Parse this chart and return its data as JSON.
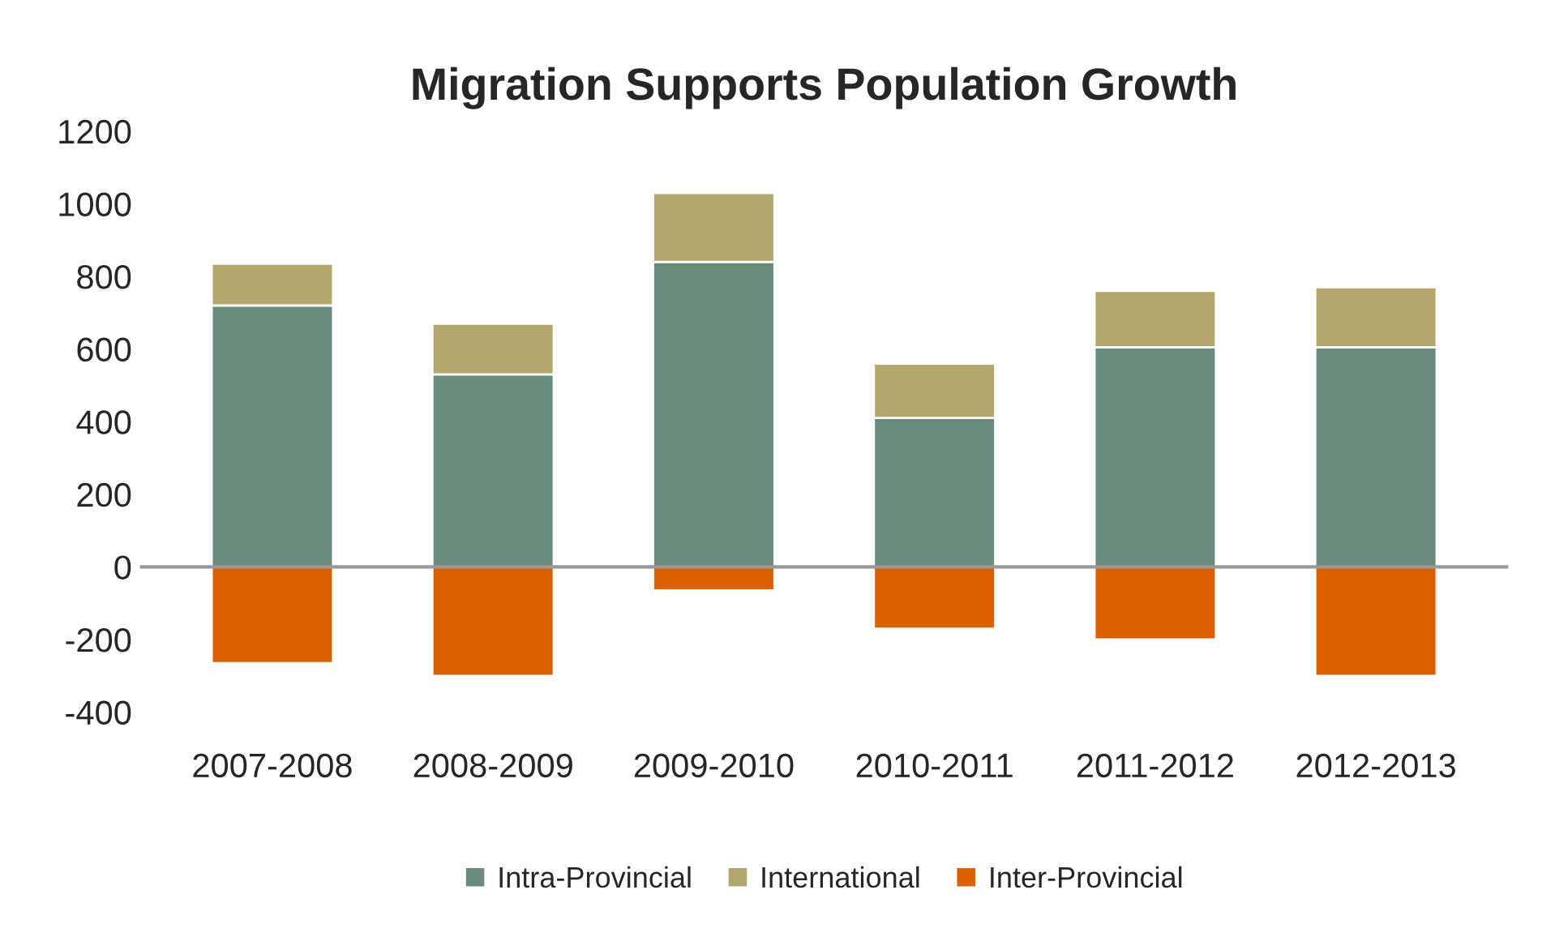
{
  "chart_data": {
    "type": "bar",
    "title": "Migration Supports Population Growth",
    "stacked": true,
    "categories": [
      "2007-2008",
      "2008-2009",
      "2009-2010",
      "2010-2011",
      "2011-2012",
      "2012-2013"
    ],
    "series": [
      {
        "name": "Intra-Provincial",
        "color": "#6a8b7c",
        "values": [
          720,
          530,
          840,
          410,
          605,
          605
        ]
      },
      {
        "name": "International",
        "color": "#b3a76e",
        "values": [
          115,
          140,
          190,
          150,
          155,
          165
        ]
      },
      {
        "name": "Inter-Provincial",
        "color": "#dc6000",
        "values": [
          -265,
          -300,
          -65,
          -170,
          -200,
          -300
        ]
      }
    ],
    "ylim": [
      -400,
      1200
    ],
    "yticks": [
      -400,
      -200,
      0,
      200,
      400,
      600,
      800,
      1000,
      1200
    ],
    "grid": false,
    "ref_lines": [
      {
        "axis": "y",
        "value": 0,
        "color": "#999999"
      }
    ],
    "legend": "bottom"
  }
}
